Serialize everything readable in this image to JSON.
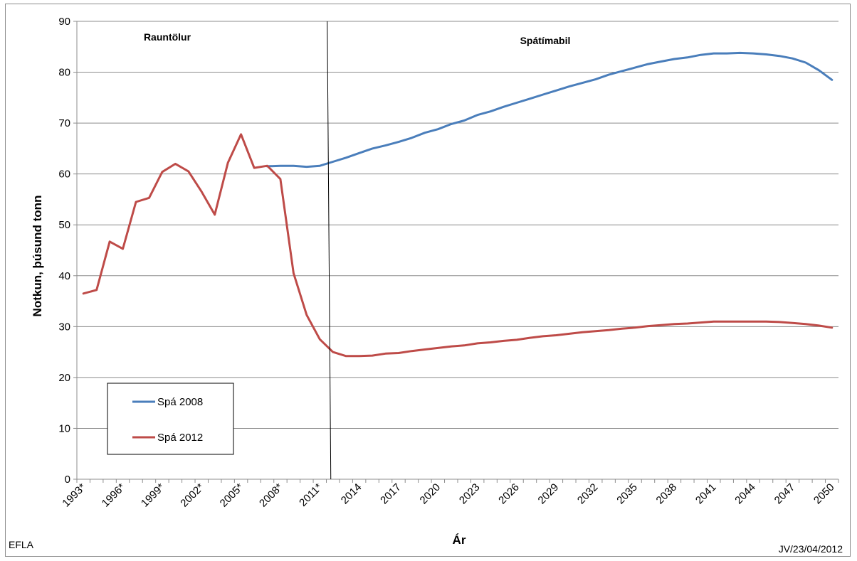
{
  "chart_data": {
    "type": "line",
    "xlabel": "Ár",
    "ylabel": "Notkun, þúsund tonn",
    "ylim": [
      0,
      90
    ],
    "yticks": [
      0,
      10,
      20,
      30,
      40,
      50,
      60,
      70,
      80,
      90
    ],
    "grid": "horizontal",
    "legend_position": "bottom-left",
    "x_tick_labels": [
      "1993*",
      "1996*",
      "1999*",
      "2002*",
      "2005*",
      "2008*",
      "2011*",
      "2014",
      "2017",
      "2020",
      "2023",
      "2026",
      "2029",
      "2032",
      "2035",
      "2038",
      "2041",
      "2044",
      "2047",
      "2050"
    ],
    "x_range": [
      1993,
      2050
    ],
    "divider_year": 2012,
    "region_labels": [
      "Rauntölur",
      "Spátímabil"
    ],
    "series": [
      {
        "name": "Spá 2008",
        "color": "#4a7ebb",
        "x": [
          2007,
          2008,
          2009,
          2010,
          2011,
          2012,
          2013,
          2014,
          2015,
          2016,
          2017,
          2018,
          2019,
          2020,
          2021,
          2022,
          2023,
          2024,
          2025,
          2026,
          2027,
          2028,
          2029,
          2030,
          2031,
          2032,
          2033,
          2034,
          2035,
          2036,
          2037,
          2038,
          2039,
          2040,
          2041,
          2042,
          2043,
          2044,
          2045,
          2046,
          2047,
          2048,
          2049,
          2050
        ],
        "values": [
          61.5,
          61.6,
          61.6,
          61.4,
          61.6,
          62.4,
          63.2,
          64.1,
          65.0,
          65.6,
          66.3,
          67.1,
          68.1,
          68.8,
          69.8,
          70.5,
          71.6,
          72.3,
          73.2,
          74.0,
          74.8,
          75.6,
          76.4,
          77.2,
          77.9,
          78.6,
          79.5,
          80.2,
          80.9,
          81.6,
          82.1,
          82.6,
          82.9,
          83.4,
          83.7,
          83.7,
          83.8,
          83.7,
          83.5,
          83.2,
          82.7,
          81.9,
          80.4,
          78.5
        ]
      },
      {
        "name": "Spá 2012",
        "color": "#be4b48",
        "x": [
          1993,
          1994,
          1995,
          1996,
          1997,
          1998,
          1999,
          2000,
          2001,
          2002,
          2003,
          2004,
          2005,
          2006,
          2007,
          2008,
          2009,
          2010,
          2011,
          2012,
          2013,
          2014,
          2015,
          2016,
          2017,
          2018,
          2019,
          2020,
          2021,
          2022,
          2023,
          2024,
          2025,
          2026,
          2027,
          2028,
          2029,
          2030,
          2031,
          2032,
          2033,
          2034,
          2035,
          2036,
          2037,
          2038,
          2039,
          2040,
          2041,
          2042,
          2043,
          2044,
          2045,
          2046,
          2047,
          2048,
          2049,
          2050
        ],
        "values": [
          36.5,
          37.2,
          46.7,
          45.3,
          54.5,
          55.3,
          60.4,
          62.0,
          60.5,
          56.5,
          52.0,
          62.2,
          67.8,
          61.2,
          61.6,
          59.0,
          40.5,
          32.3,
          27.5,
          25.0,
          24.2,
          24.2,
          24.3,
          24.7,
          24.8,
          25.2,
          25.5,
          25.8,
          26.1,
          26.3,
          26.7,
          26.9,
          27.2,
          27.4,
          27.8,
          28.1,
          28.3,
          28.6,
          28.9,
          29.1,
          29.3,
          29.6,
          29.8,
          30.1,
          30.3,
          30.5,
          30.6,
          30.8,
          31.0,
          31.0,
          31.0,
          31.0,
          31.0,
          30.9,
          30.7,
          30.5,
          30.2,
          29.8
        ]
      }
    ]
  },
  "footer": {
    "left_label": "EFLA",
    "right_label": "JV/23/04/2012"
  }
}
